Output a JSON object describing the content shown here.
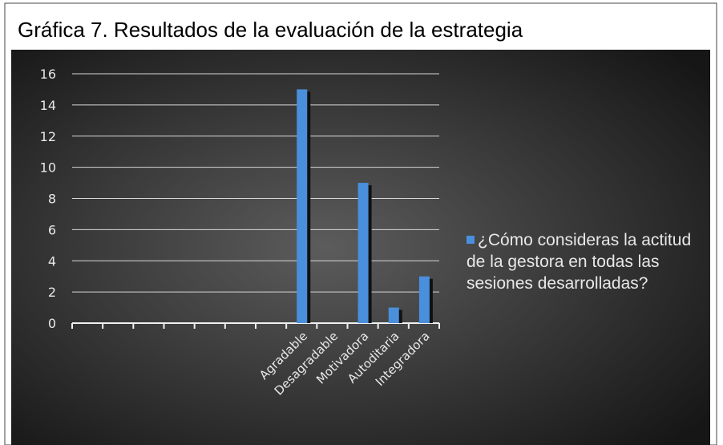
{
  "chart_data": {
    "type": "bar",
    "title": "Gráfica 7. Resultados de la evaluación de la estrategia",
    "categories": [
      null,
      null,
      null,
      null,
      null,
      null,
      null,
      "Agradable",
      "Desagradable",
      "Motivadora",
      "Autoditaria",
      "Integradora"
    ],
    "series": [
      {
        "name": "¿Cómo consideras la actitud de la gestora en todas las sesiones desarrolladas?",
        "color": "#4a8fdc",
        "values": [
          null,
          null,
          null,
          null,
          null,
          null,
          null,
          15,
          0,
          9,
          1,
          3
        ]
      }
    ],
    "ylim": [
      0,
      16
    ],
    "yticks": [
      0,
      2,
      4,
      6,
      8,
      10,
      12,
      14,
      16
    ],
    "grid": true,
    "legend": "right"
  }
}
